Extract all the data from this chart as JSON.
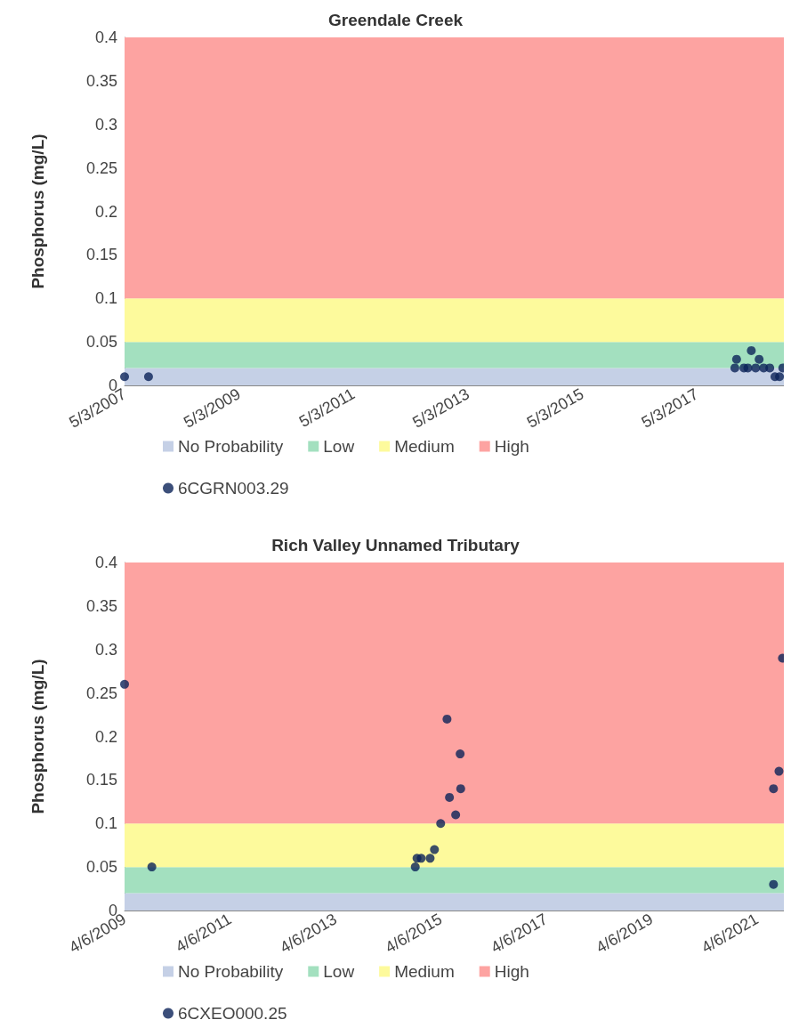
{
  "chart_data": [
    {
      "type": "scatter",
      "title": "Greendale Creek",
      "ylabel": "Phosphorus (mg/L)",
      "marker": "circle",
      "legend": "bottom",
      "xlim": [
        "2007-05-03",
        "2018-11-10"
      ],
      "xticks": [
        {
          "value": "2007-05-03",
          "label": "5/3/2007"
        },
        {
          "value": "2009-05-03",
          "label": "5/3/2009"
        },
        {
          "value": "2011-05-03",
          "label": "5/3/2011"
        },
        {
          "value": "2013-05-03",
          "label": "5/3/2013"
        },
        {
          "value": "2015-05-03",
          "label": "5/3/2015"
        },
        {
          "value": "2017-05-03",
          "label": "5/3/2017"
        }
      ],
      "ylim": [
        0,
        0.4
      ],
      "yticks": [
        0,
        0.05,
        0.1,
        0.15,
        0.2,
        0.25,
        0.3,
        0.35,
        0.4
      ],
      "bands": [
        {
          "axis": "y",
          "from": 0,
          "to": 0.02,
          "label": "No Probability",
          "color": "#c5d0e6"
        },
        {
          "axis": "y",
          "from": 0.02,
          "to": 0.05,
          "label": "Low",
          "color": "#a3e0bf"
        },
        {
          "axis": "y",
          "from": 0.05,
          "to": 0.1,
          "label": "Medium",
          "color": "#fdfa9c"
        },
        {
          "axis": "y",
          "from": 0.1,
          "to": 0.4,
          "label": "High",
          "color": "#fda3a1"
        }
      ],
      "series": [
        {
          "name": "6CGRN003.29",
          "color": "#0b2359",
          "x": [
            "2007-05-03",
            "2007-10-03",
            "2018-01-01",
            "2018-01-12",
            "2018-02-28",
            "2018-03-25",
            "2018-04-16",
            "2018-05-14",
            "2018-06-05",
            "2018-07-04",
            "2018-08-12",
            "2018-09-14",
            "2018-10-13",
            "2018-11-03"
          ],
          "values": [
            0.01,
            0.01,
            0.02,
            0.03,
            0.02,
            0.02,
            0.04,
            0.02,
            0.03,
            0.02,
            0.02,
            0.01,
            0.01,
            0.02
          ]
        }
      ]
    },
    {
      "type": "scatter",
      "title": "Rich Valley Unnamed Tributary",
      "ylabel": "Phosphorus (mg/L)",
      "marker": "circle",
      "legend": "bottom",
      "xlim": [
        "2009-04-06",
        "2021-10-10"
      ],
      "xticks": [
        {
          "value": "2009-04-06",
          "label": "4/6/2009"
        },
        {
          "value": "2011-04-06",
          "label": "4/6/2011"
        },
        {
          "value": "2013-04-06",
          "label": "4/6/2013"
        },
        {
          "value": "2015-04-06",
          "label": "4/6/2015"
        },
        {
          "value": "2017-04-06",
          "label": "4/6/2017"
        },
        {
          "value": "2019-04-06",
          "label": "4/6/2019"
        },
        {
          "value": "2021-04-06",
          "label": "4/6/2021"
        }
      ],
      "ylim": [
        0,
        0.4
      ],
      "yticks": [
        0,
        0.05,
        0.1,
        0.15,
        0.2,
        0.25,
        0.3,
        0.35,
        0.4
      ],
      "bands": [
        {
          "axis": "y",
          "from": 0,
          "to": 0.02,
          "label": "No Probability",
          "color": "#c5d0e6"
        },
        {
          "axis": "y",
          "from": 0.02,
          "to": 0.05,
          "label": "Low",
          "color": "#a3e0bf"
        },
        {
          "axis": "y",
          "from": 0.05,
          "to": 0.1,
          "label": "Medium",
          "color": "#fdfa9c"
        },
        {
          "axis": "y",
          "from": 0.1,
          "to": 0.4,
          "label": "High",
          "color": "#fda3a1"
        }
      ],
      "series": [
        {
          "name": "6CXEO000.25",
          "color": "#0b2359",
          "x": [
            "2009-04-06",
            "2009-10-12",
            "2014-10-12",
            "2014-10-24",
            "2014-11-22",
            "2015-01-23",
            "2015-02-22",
            "2015-04-06",
            "2015-05-20",
            "2015-06-06",
            "2015-07-19",
            "2015-08-19",
            "2015-08-23",
            "2021-07-30",
            "2021-07-30",
            "2021-09-06",
            "2021-09-30"
          ],
          "values": [
            0.26,
            0.05,
            0.05,
            0.06,
            0.06,
            0.06,
            0.07,
            0.1,
            0.22,
            0.13,
            0.11,
            0.18,
            0.14,
            0.14,
            0.03,
            0.16,
            0.29
          ]
        }
      ]
    }
  ]
}
